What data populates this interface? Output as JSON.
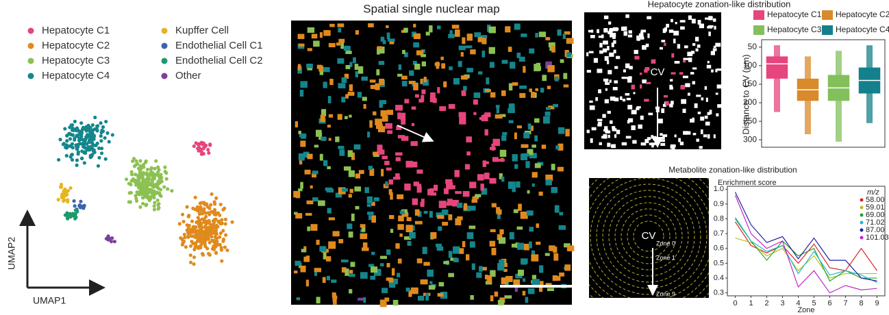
{
  "chart_data": [
    {
      "type": "umap",
      "xlabel": "UMAP1",
      "ylabel": "UMAP2",
      "legend": [
        {
          "name": "Hepatocyte C1",
          "color": "#e6457d"
        },
        {
          "name": "Hepatocyte C2",
          "color": "#e08a1e"
        },
        {
          "name": "Hepatocyte C3",
          "color": "#8cc152"
        },
        {
          "name": "Hepatocyte C4",
          "color": "#14868c"
        },
        {
          "name": "Kupffer Cell",
          "color": "#e6b422"
        },
        {
          "name": "Endothelial Cell C1",
          "color": "#3a64b0"
        },
        {
          "name": "Endothelial Cell C2",
          "color": "#1d9a6c"
        },
        {
          "name": "Other",
          "color": "#7b3f9e"
        }
      ]
    },
    {
      "type": "spatial",
      "title": "Spatial single nuclear map"
    },
    {
      "type": "boxen",
      "title": "Hepatocyte zonation-like distribution",
      "annotation": "CV",
      "ylabel": "Distance to CV (μm)",
      "ylim": [
        30,
        320
      ],
      "yticks": [
        50,
        100,
        150,
        200,
        250,
        300
      ],
      "inverted": true,
      "series": [
        {
          "name": "Hepatocyte C1",
          "color": "#e6457d",
          "values": [
            45,
            75,
            95,
            135,
            225
          ]
        },
        {
          "name": "Hepatocyte C2",
          "color": "#d98a2b",
          "values": [
            75,
            135,
            165,
            195,
            285
          ]
        },
        {
          "name": "Hepatocyte C3",
          "color": "#83c05c",
          "values": [
            60,
            125,
            160,
            195,
            305
          ]
        },
        {
          "name": "Hepatocyte C4",
          "color": "#14808c",
          "values": [
            45,
            105,
            140,
            175,
            255
          ]
        }
      ]
    },
    {
      "type": "line",
      "title": "Metabolite zonation-like distribution",
      "subtitle": "Enrichment score",
      "annotations": [
        "CV",
        "Zone 0",
        "Zone 1",
        "Zone 9"
      ],
      "xlabel": "Zone",
      "legend_title": "m/z",
      "x": [
        0,
        1,
        2,
        3,
        4,
        5,
        6,
        7,
        8,
        9
      ],
      "xticks": [
        0,
        1,
        2,
        3,
        4,
        5,
        6,
        7,
        8,
        9
      ],
      "xlim": [
        -0.5,
        9.5
      ],
      "ylim": [
        0.28,
        1.02
      ],
      "yticks": [
        0.3,
        0.4,
        0.5,
        0.6,
        0.7,
        0.8,
        0.9,
        {
          "value": 1.0,
          "label": "1.0"
        }
      ],
      "series": [
        {
          "name": "58.00",
          "color": "#d62728",
          "values": [
            0.78,
            0.62,
            0.57,
            0.62,
            0.5,
            0.63,
            0.47,
            0.45,
            0.6,
            0.45
          ]
        },
        {
          "name": "59.01",
          "color": "#bcbd22",
          "values": [
            0.67,
            0.64,
            0.55,
            0.6,
            0.45,
            0.55,
            0.4,
            0.43,
            0.43,
            0.43
          ]
        },
        {
          "name": "69.00",
          "color": "#2ca02c",
          "values": [
            0.8,
            0.65,
            0.52,
            0.65,
            0.55,
            0.6,
            0.38,
            0.45,
            0.4,
            0.4
          ]
        },
        {
          "name": "71.02",
          "color": "#17becf",
          "values": [
            0.81,
            0.65,
            0.58,
            0.62,
            0.43,
            0.58,
            0.42,
            0.45,
            0.42,
            0.37
          ]
        },
        {
          "name": "87.00",
          "color": "#1f1f9f",
          "values": [
            0.98,
            0.76,
            0.64,
            0.68,
            0.53,
            0.67,
            0.52,
            0.52,
            0.4,
            0.38
          ]
        },
        {
          "name": "101.03",
          "color": "#c026c0",
          "values": [
            0.96,
            0.7,
            0.6,
            0.65,
            0.34,
            0.45,
            0.3,
            0.35,
            0.32,
            0.33
          ]
        }
      ]
    }
  ]
}
